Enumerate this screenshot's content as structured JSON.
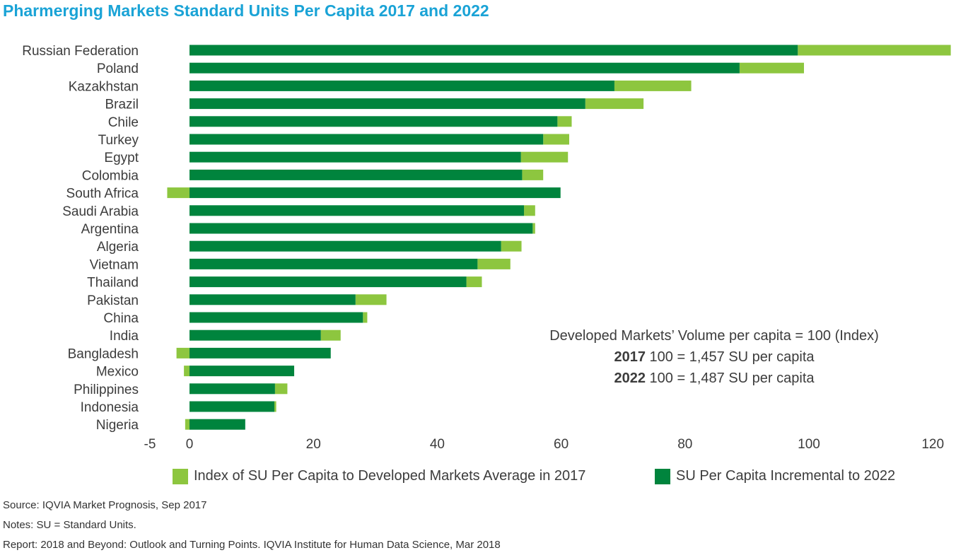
{
  "title": "Pharmerging Markets Standard Units Per Capita 2017 and 2022",
  "annotation": {
    "line1": "Developed Markets’ Volume per capita = 100 (Index)",
    "line2_bold": "2017",
    "line2_rest": " 100 = 1,457 SU per capita",
    "line3_bold": "2022",
    "line3_rest": " 100 = 1,487 SU per capita"
  },
  "footnotes": {
    "source": "Source: IQVIA Market Prognosis, Sep 2017",
    "notes": "Notes: SU = Standard Units.",
    "report": "Report: 2018 and Beyond: Outlook and Turning Points. IQVIA Institute for Human Data Science, Mar 2018"
  },
  "colors": {
    "light_green": "#8dc63f",
    "dark_green": "#00843d",
    "title": "#1aa3d6"
  },
  "chart_data": {
    "type": "bar",
    "orientation": "horizontal",
    "stacked": true,
    "categories": [
      "Russian Federation",
      "Poland",
      "Kazakhstan",
      "Brazil",
      "Chile",
      "Turkey",
      "Egypt",
      "Colombia",
      "South Africa",
      "Saudi Arabia",
      "Argentina",
      "Algeria",
      "Vietnam",
      "Thailand",
      "Pakistan",
      "China",
      "India",
      "Bangladesh",
      "Mexico",
      "Philippines",
      "Indonesia",
      "Nigeria"
    ],
    "series": [
      {
        "name": "SU Per Capita Incremental to 2022",
        "color": "#00843d",
        "values": [
          98.2,
          88.8,
          68.6,
          63.9,
          59.4,
          57.1,
          53.5,
          53.7,
          59.9,
          54.0,
          55.4,
          50.3,
          46.5,
          44.7,
          26.8,
          28.0,
          21.2,
          22.8,
          16.9,
          13.8,
          13.7,
          9.0
        ]
      },
      {
        "name": "Index of SU Per Capita to Developed Markets Average in 2017",
        "color": "#8dc63f",
        "values": [
          24.7,
          10.4,
          12.4,
          9.4,
          2.3,
          4.2,
          7.6,
          3.4,
          -3.6,
          1.8,
          0.4,
          3.3,
          5.3,
          2.5,
          5.0,
          0.7,
          3.2,
          -2.1,
          -0.9,
          2.0,
          0.3,
          -0.7
        ]
      }
    ],
    "xlim": [
      -5,
      120
    ],
    "xticks": [
      -5,
      0,
      20,
      40,
      60,
      80,
      100,
      120
    ],
    "legend_position": "bottom",
    "grid": false
  }
}
